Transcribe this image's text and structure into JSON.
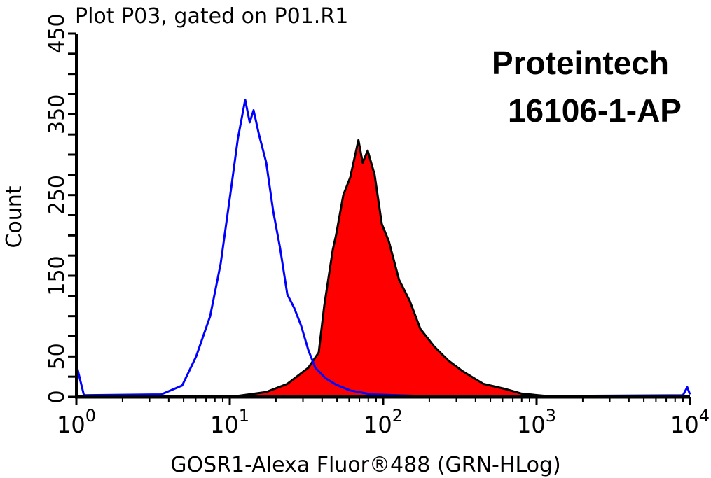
{
  "chart_data": {
    "type": "area",
    "title": "Plot P03, gated on P01.R1",
    "annotations": [
      "Proteintech",
      "16106-1-AP"
    ],
    "xlabel": "GOSR1-Alexa Fluor®488 (GRN-HLog)",
    "ylabel": "Count",
    "xscale": "log",
    "xlim": [
      1,
      10000
    ],
    "ylim": [
      0,
      450
    ],
    "x_tick_labels": [
      {
        "base": "10",
        "exp": "0"
      },
      {
        "base": "10",
        "exp": "1"
      },
      {
        "base": "10",
        "exp": "2"
      },
      {
        "base": "10",
        "exp": "3"
      },
      {
        "base": "10",
        "exp": "4"
      }
    ],
    "y_tick_labels": [
      "0",
      "50",
      "150",
      "250",
      "350",
      "450"
    ],
    "y_tick_values": [
      0,
      50,
      150,
      250,
      350,
      450
    ],
    "grid": false,
    "series": [
      {
        "style": "outline",
        "color": "#0000ff",
        "x": [
          1.0,
          1.12,
          3.57,
          4.89,
          6.04,
          7.45,
          8.72,
          10.2,
          11.3,
          12.6,
          13.5,
          14.3,
          15.5,
          17.3,
          19.2,
          21.3,
          23.7,
          26.3,
          29.2,
          32.5,
          36.1,
          42.2,
          49.4,
          60.9,
          83.9,
          175,
          1440,
          9000,
          9600,
          10000
        ],
        "y": [
          40,
          2,
          3,
          14,
          50,
          100,
          165,
          258,
          320,
          368,
          340,
          355,
          325,
          290,
          230,
          184,
          127,
          110,
          88,
          58,
          36,
          23,
          15,
          8,
          3,
          1,
          1,
          2,
          12,
          3
        ]
      },
      {
        "style": "filled",
        "color": "#ff0000",
        "outline_color": "#000000",
        "x": [
          10.2,
          17.3,
          23.7,
          32.5,
          38.0,
          41.3,
          46.9,
          49.4,
          55.0,
          61.0,
          69.0,
          73.5,
          79.3,
          88.0,
          98.0,
          108.8,
          127,
          149,
          175,
          216,
          266,
          328,
          450,
          618,
          801,
          1150,
          1440
        ],
        "y": [
          0,
          6,
          16,
          36,
          55,
          113,
          182,
          201,
          250,
          272,
          318,
          290,
          305,
          275,
          214,
          193,
          145,
          119,
          84,
          62,
          45,
          32,
          16,
          10,
          4,
          1,
          0
        ]
      }
    ]
  }
}
